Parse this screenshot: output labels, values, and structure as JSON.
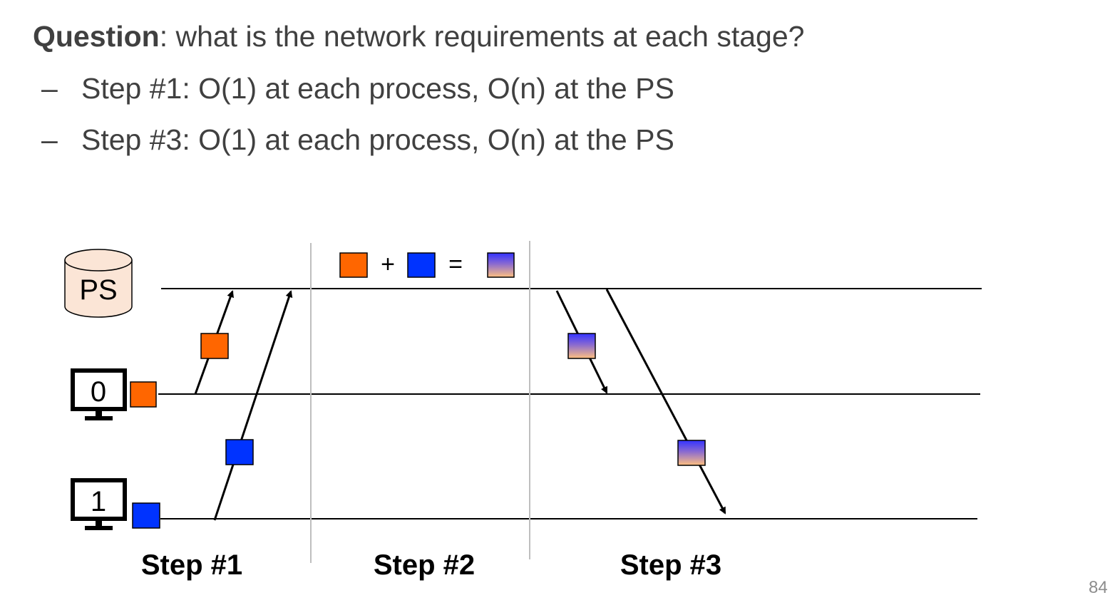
{
  "question": {
    "label": "Question",
    "text": ": what is the network requirements at each stage?"
  },
  "bullets": [
    {
      "dash": "–",
      "text": "Step #1: O(1) at each process, O(n) at the PS"
    },
    {
      "dash": "–",
      "text": "Step #3: O(1) at each process, O(n) at the PS"
    }
  ],
  "diagram": {
    "nodes": {
      "ps": "PS",
      "worker0": "0",
      "worker1": "1"
    },
    "equation": {
      "plus": "+",
      "equals": "="
    },
    "steps": [
      "Step #1",
      "Step #2",
      "Step #3"
    ],
    "colors": {
      "orange": "#ff6600",
      "blue": "#0033ff",
      "db_fill": "#fbe5d6",
      "divider": "#bfbfbf",
      "gradient_top": "#3333ff",
      "gradient_bottom": "#ffc080"
    },
    "icons": [
      "database-icon",
      "monitor-icon"
    ]
  },
  "page_number": "84"
}
